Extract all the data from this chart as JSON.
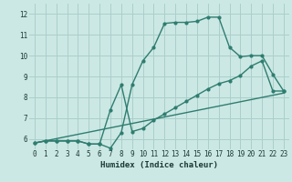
{
  "xlabel": "Humidex (Indice chaleur)",
  "xlim": [
    -0.5,
    23.5
  ],
  "ylim": [
    5.5,
    12.5
  ],
  "yticks": [
    6,
    7,
    8,
    9,
    10,
    11,
    12
  ],
  "xticks": [
    0,
    1,
    2,
    3,
    4,
    5,
    6,
    7,
    8,
    9,
    10,
    11,
    12,
    13,
    14,
    15,
    16,
    17,
    18,
    19,
    20,
    21,
    22,
    23
  ],
  "bg_color": "#cce8e4",
  "grid_color": "#aacfcb",
  "line_color": "#2e7d70",
  "curve1_x": [
    0,
    1,
    2,
    3,
    4,
    5,
    6,
    7,
    8,
    9,
    10,
    11,
    12,
    13,
    14,
    15,
    16,
    17,
    18,
    19,
    20,
    21,
    22,
    23
  ],
  "curve1_y": [
    5.8,
    5.9,
    5.9,
    5.9,
    5.9,
    5.75,
    5.75,
    5.55,
    6.3,
    8.6,
    9.75,
    10.4,
    11.55,
    11.6,
    11.6,
    11.65,
    11.85,
    11.85,
    10.4,
    9.95,
    10.0,
    10.0,
    9.1,
    8.3
  ],
  "curve2_x": [
    0,
    1,
    2,
    3,
    4,
    5,
    6,
    7,
    8,
    9,
    10,
    11,
    12,
    13,
    14,
    15,
    16,
    17,
    18,
    19,
    20,
    21,
    22,
    23
  ],
  "curve2_y": [
    5.8,
    5.9,
    5.9,
    5.9,
    5.9,
    5.75,
    5.75,
    7.4,
    8.6,
    6.35,
    6.5,
    6.9,
    7.2,
    7.5,
    7.8,
    8.1,
    8.4,
    8.65,
    8.8,
    9.05,
    9.5,
    9.75,
    8.3,
    8.3
  ],
  "curve3_x": [
    0,
    23
  ],
  "curve3_y": [
    5.8,
    8.2
  ],
  "marker_size": 2.0,
  "linewidth": 1.0,
  "tick_fontsize": 5.5,
  "xlabel_fontsize": 6.5
}
